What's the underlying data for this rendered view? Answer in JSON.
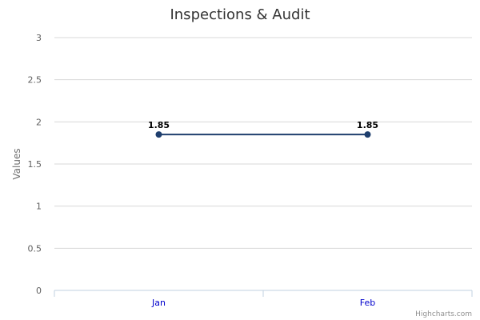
{
  "chart_data": {
    "type": "line",
    "title": "Inspections & Audit",
    "xlabel": "",
    "ylabel": "Values",
    "categories": [
      "Jan",
      "Feb"
    ],
    "series": [
      {
        "values": [
          1.85,
          1.85
        ],
        "color": "#1f3f6e"
      }
    ],
    "data_labels": [
      "1.85",
      "1.85"
    ],
    "ylim": [
      0,
      3
    ],
    "yticks": [
      "0",
      "0.5",
      "1",
      "1.5",
      "2",
      "2.5",
      "3"
    ],
    "grid": true,
    "legend": "none"
  },
  "credits": "Highcharts.com"
}
